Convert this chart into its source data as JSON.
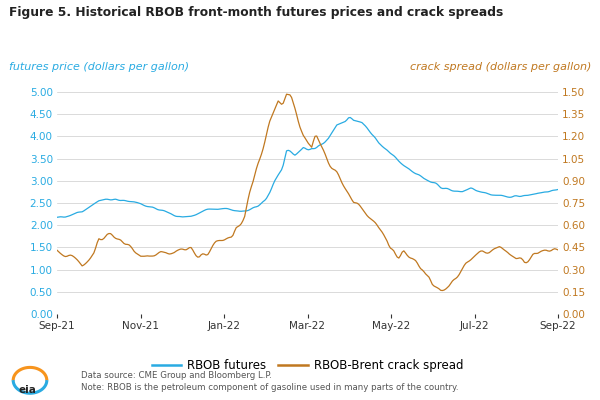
{
  "title": "Figure 5. Historical RBOB front-month futures prices and crack spreads",
  "left_axis_label": "futures price (dollars per gallon)",
  "right_axis_label": "crack spread (dollars per gallon)",
  "left_color": "#29ABE2",
  "right_color": "#C07820",
  "title_color": "#222222",
  "background_color": "#FFFFFF",
  "grid_color": "#CCCCCC",
  "legend_labels": [
    "RBOB futures",
    "RBOB-Brent crack spread"
  ],
  "source_text": "Data source: CME Group and Bloomberg L.P.",
  "note_text": "Note: RBOB is the petroleum component of gasoline used in many parts of the country.",
  "left_ylim": [
    0.0,
    5.0
  ],
  "right_ylim": [
    0.0,
    1.5
  ],
  "left_yticks": [
    0.0,
    0.5,
    1.0,
    1.5,
    2.0,
    2.5,
    3.0,
    3.5,
    4.0,
    4.5,
    5.0
  ],
  "right_yticks": [
    0.0,
    0.15,
    0.3,
    0.45,
    0.6,
    0.75,
    0.9,
    1.05,
    1.2,
    1.35,
    1.5
  ],
  "x_tick_labels": [
    "Sep-21",
    "Nov-21",
    "Jan-22",
    "Mar-22",
    "May-22",
    "Jul-22",
    "Sep-22"
  ],
  "rbob_kp_x": [
    0,
    0.3,
    0.6,
    1.0,
    1.4,
    1.8,
    2.0,
    2.3,
    2.6,
    3.0,
    3.2,
    3.4,
    3.6,
    3.8,
    4.0,
    4.2,
    4.4,
    4.6,
    4.8,
    5.0,
    5.1,
    5.2,
    5.4,
    5.5,
    5.7,
    5.9,
    6.0,
    6.1,
    6.2,
    6.3,
    6.5,
    6.6,
    6.7,
    6.9,
    7.0,
    7.1,
    7.3,
    7.5,
    7.7,
    7.9,
    8.0,
    8.2,
    8.4,
    8.6,
    8.8,
    9.0,
    9.1,
    9.2,
    9.4,
    9.5,
    9.7,
    9.9,
    10.1,
    10.3,
    10.5,
    10.7,
    10.9,
    11.1,
    11.3,
    11.5,
    11.7,
    11.9,
    12.0
  ],
  "rbob_kp_y": [
    2.18,
    2.22,
    2.3,
    2.55,
    2.58,
    2.52,
    2.48,
    2.4,
    2.3,
    2.18,
    2.2,
    2.28,
    2.35,
    2.4,
    2.38,
    2.35,
    2.32,
    2.35,
    2.42,
    2.55,
    2.75,
    3.0,
    3.3,
    3.65,
    3.6,
    3.75,
    3.7,
    3.75,
    3.72,
    3.8,
    3.95,
    4.1,
    4.25,
    4.35,
    4.45,
    4.35,
    4.3,
    4.1,
    3.85,
    3.7,
    3.6,
    3.45,
    3.3,
    3.15,
    3.05,
    2.95,
    2.9,
    2.85,
    2.82,
    2.8,
    2.78,
    2.82,
    2.75,
    2.72,
    2.68,
    2.65,
    2.62,
    2.65,
    2.68,
    2.72,
    2.75,
    2.8,
    2.82
  ],
  "crack_kp_x": [
    0,
    0.3,
    0.6,
    0.9,
    1.0,
    1.3,
    1.5,
    1.8,
    2.0,
    2.2,
    2.5,
    2.8,
    3.0,
    3.2,
    3.4,
    3.6,
    3.8,
    4.0,
    4.2,
    4.3,
    4.5,
    4.6,
    4.7,
    4.8,
    4.9,
    5.0,
    5.1,
    5.2,
    5.3,
    5.4,
    5.5,
    5.6,
    5.7,
    5.8,
    5.9,
    6.0,
    6.1,
    6.2,
    6.3,
    6.5,
    6.6,
    6.7,
    6.8,
    6.9,
    7.0,
    7.1,
    7.3,
    7.5,
    7.7,
    7.9,
    8.0,
    8.1,
    8.2,
    8.3,
    8.4,
    8.5,
    8.6,
    8.7,
    8.9,
    9.0,
    9.2,
    9.4,
    9.6,
    9.8,
    10.0,
    10.2,
    10.4,
    10.6,
    10.8,
    11.0,
    11.2,
    11.4,
    11.6,
    11.8,
    12.0
  ],
  "crack_kp_y": [
    0.42,
    0.38,
    0.32,
    0.4,
    0.5,
    0.55,
    0.5,
    0.45,
    0.38,
    0.38,
    0.42,
    0.4,
    0.42,
    0.45,
    0.4,
    0.42,
    0.48,
    0.5,
    0.52,
    0.6,
    0.68,
    0.8,
    0.88,
    1.0,
    1.1,
    1.2,
    1.3,
    1.38,
    1.45,
    1.42,
    1.5,
    1.48,
    1.38,
    1.28,
    1.2,
    1.15,
    1.1,
    1.2,
    1.15,
    1.05,
    1.0,
    0.95,
    0.9,
    0.85,
    0.8,
    0.75,
    0.7,
    0.65,
    0.58,
    0.52,
    0.45,
    0.42,
    0.4,
    0.42,
    0.4,
    0.38,
    0.35,
    0.3,
    0.25,
    0.18,
    0.15,
    0.2,
    0.28,
    0.35,
    0.38,
    0.42,
    0.44,
    0.45,
    0.42,
    0.38,
    0.36,
    0.4,
    0.42,
    0.44,
    0.45
  ]
}
